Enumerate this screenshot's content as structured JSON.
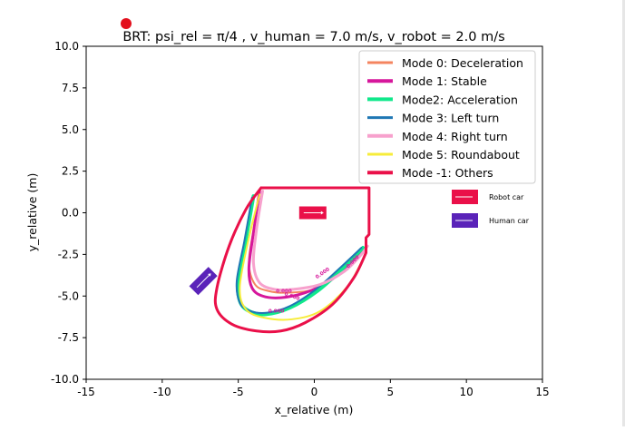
{
  "chart_data": {
    "type": "line",
    "title": "BRT: psi_rel = π/4 , v_human = 7.0 m/s, v_robot = 2.0 m/s",
    "xlabel": "x_relative (m)",
    "ylabel": "y_relative (m)",
    "xlim": [
      -15,
      15
    ],
    "ylim": [
      -10,
      10
    ],
    "xticks": [
      -15,
      -10,
      -5,
      0,
      5,
      10,
      15
    ],
    "yticks": [
      10.0,
      7.5,
      5.0,
      2.5,
      0.0,
      -2.5,
      -5.0,
      -7.5,
      -10.0
    ],
    "grid": false,
    "legend_position": "top-right",
    "series": [
      {
        "name": "Mode 0: Deceleration",
        "color": "#f4845f",
        "width": 2,
        "x": [
          -3.6,
          -4.0,
          -4.3,
          -3.9,
          -3.0,
          -1.8,
          0.0,
          1.5,
          2.8,
          3.5
        ],
        "y": [
          1.3,
          -1.0,
          -3.0,
          -4.3,
          -4.7,
          -4.8,
          -4.6,
          -3.8,
          -2.8,
          -2.0
        ]
      },
      {
        "name": "Mode 1: Stable",
        "color": "#d6179b",
        "width": 3,
        "x": [
          -3.6,
          -4.0,
          -4.3,
          -4.1,
          -3.4,
          -2.2,
          -0.6,
          1.0,
          2.3,
          3.3
        ],
        "y": [
          1.3,
          -1.2,
          -3.3,
          -4.5,
          -5.0,
          -5.1,
          -4.8,
          -4.1,
          -3.1,
          -2.2
        ]
      },
      {
        "name": "Mode2: Acceleration",
        "color": "#10e88b",
        "width": 4,
        "x": [
          -4.0,
          -4.5,
          -5.0,
          -4.9,
          -4.3,
          -3.2,
          -1.6,
          0.2,
          1.8,
          3.2
        ],
        "y": [
          1.0,
          -1.6,
          -4.0,
          -5.3,
          -5.9,
          -6.1,
          -5.7,
          -4.7,
          -3.4,
          -2.1
        ]
      },
      {
        "name": "Mode 3: Left turn",
        "color": "#1f77b4",
        "width": 2,
        "x": [
          -4.1,
          -4.6,
          -5.1,
          -4.9,
          -4.2,
          -3.1,
          -1.6,
          0.1,
          1.7,
          3.1
        ],
        "y": [
          0.9,
          -1.7,
          -4.1,
          -5.4,
          -5.9,
          -6.0,
          -5.6,
          -4.6,
          -3.3,
          -2.1
        ]
      },
      {
        "name": "Mode 4: Right turn",
        "color": "#f7a1cd",
        "width": 3,
        "x": [
          -3.4,
          -3.8,
          -4.0,
          -3.6,
          -2.6,
          -1.4,
          0.4,
          2.0,
          3.0,
          3.5
        ],
        "y": [
          1.3,
          -1.0,
          -3.0,
          -4.2,
          -4.6,
          -4.6,
          -4.3,
          -3.5,
          -2.6,
          -2.0
        ]
      },
      {
        "name": "Mode 5: Roundabout",
        "color": "#f7ec3a",
        "width": 2,
        "x": [
          -3.6,
          -4.4,
          -4.9,
          -4.5,
          -3.3,
          -1.5,
          0.4,
          2.2,
          3.3
        ],
        "y": [
          1.1,
          -1.9,
          -4.5,
          -5.8,
          -6.3,
          -6.4,
          -5.9,
          -4.4,
          -2.6
        ]
      },
      {
        "name": "Mode -1: Others",
        "color": "#ea1049",
        "width": 3,
        "closed": true,
        "x": [
          -3.5,
          -4.5,
          -5.6,
          -6.4,
          -6.4,
          -5.4,
          -3.8,
          -2.2,
          -0.6,
          1.2,
          2.6,
          3.4,
          3.4,
          3.6,
          3.6,
          -3.5
        ],
        "y": [
          1.5,
          0.2,
          -2.0,
          -4.5,
          -5.8,
          -6.7,
          -7.1,
          -7.1,
          -6.6,
          -5.5,
          -3.9,
          -2.4,
          -1.5,
          -1.3,
          1.5,
          1.5
        ]
      }
    ],
    "annotations": [
      "0.000",
      "0.000",
      "0.000",
      "0.000",
      "0.000"
    ],
    "inset_legend": [
      {
        "label": "Robot car",
        "color": "#ea1049"
      },
      {
        "label": "Human car",
        "color": "#5a23b9"
      }
    ],
    "robot_car": {
      "x": -0.1,
      "y": 0.0,
      "heading_deg": 0,
      "color": "#ea1049"
    },
    "human_car": {
      "x": -7.3,
      "y": -4.1,
      "heading_deg": 45,
      "color": "#5a23b9"
    }
  }
}
